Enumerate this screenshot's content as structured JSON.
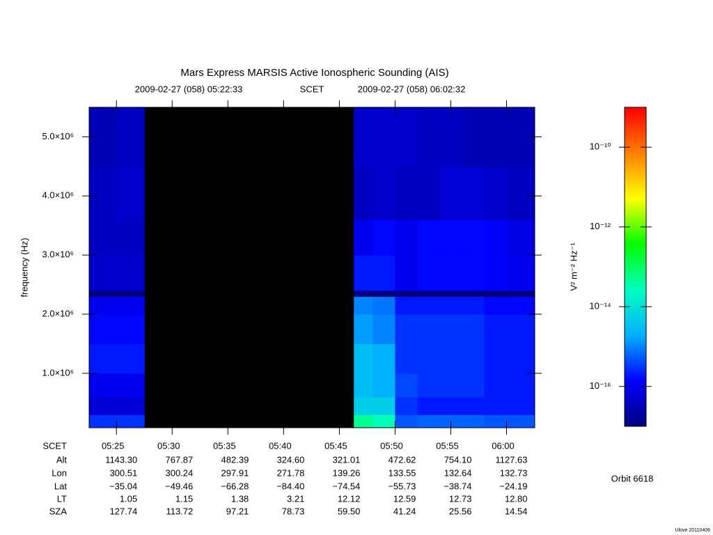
{
  "chart_data": {
    "type": "spectrogram",
    "title": "Mars Express MARSIS Active Ionospheric Sounding (AIS)",
    "start_time": "2009-02-27 (058) 05:22:33",
    "time_label": "SCET",
    "end_time": "2009-02-27 (058) 06:02:32",
    "ylabel": "frequency (Hz)",
    "xlim": [
      322.55,
      362.53
    ],
    "xticks": [
      {
        "value": 325,
        "label": "05:25"
      },
      {
        "value": 330,
        "label": "05:30"
      },
      {
        "value": 335,
        "label": "05:35"
      },
      {
        "value": 340,
        "label": "05:40"
      },
      {
        "value": 345,
        "label": "05:45"
      },
      {
        "value": 350,
        "label": "05:50"
      },
      {
        "value": 355,
        "label": "05:55"
      },
      {
        "value": 360,
        "label": "06:00"
      }
    ],
    "ylim": [
      80000,
      5500000
    ],
    "yticks": [
      {
        "value": 1000000,
        "label": "1.0×10⁶"
      },
      {
        "value": 2000000,
        "label": "2.0×10⁶"
      },
      {
        "value": 3000000,
        "label": "3.0×10⁶"
      },
      {
        "value": 4000000,
        "label": "4.0×10⁶"
      },
      {
        "value": 5000000,
        "label": "5.0×10⁶"
      }
    ],
    "xbins": [
      322.55,
      325,
      327.5,
      346.3,
      348,
      350,
      352,
      354,
      356,
      358,
      360,
      362.53
    ],
    "ybins": [
      80000,
      300000,
      600000,
      1000000,
      1500000,
      2000000,
      2300000,
      2400000,
      3000000,
      3600000,
      4500000,
      5500000
    ],
    "z": [
      [
        3e-16,
        6e-17,
        1e-16,
        2e-16,
        1.5e-16,
        1e-16,
        1e-17,
        5e-17,
        4e-17,
        4e-17,
        3e-17
      ],
      [
        3e-16,
        6e-17,
        1e-16,
        2e-16,
        1.5e-16,
        1e-16,
        1e-17,
        5e-17,
        4e-17,
        5e-17,
        4e-17
      ],
      [
        null,
        null,
        null,
        null,
        null,
        null,
        null,
        null,
        null,
        null,
        null
      ],
      [
        5e-14,
        5e-15,
        3e-15,
        3e-15,
        1.5e-15,
        1e-15,
        1e-17,
        2e-16,
        1e-16,
        4e-17,
        5e-17
      ],
      [
        3e-14,
        5e-15,
        2e-15,
        2e-15,
        1e-15,
        8e-16,
        1e-17,
        2e-16,
        1.5e-16,
        5e-17,
        5e-17
      ],
      [
        5e-16,
        3e-16,
        4e-16,
        3e-16,
        3e-16,
        2e-16,
        1e-17,
        1e-16,
        1e-16,
        4e-17,
        5e-17
      ],
      [
        6e-16,
        2e-16,
        3e-16,
        3e-16,
        3e-16,
        2e-16,
        1e-17,
        1.5e-16,
        1.5e-16,
        4e-17,
        4e-17
      ],
      [
        6e-16,
        2e-16,
        3e-16,
        3e-16,
        3e-16,
        2e-16,
        1e-17,
        1.5e-16,
        1.5e-16,
        6e-17,
        4e-17
      ],
      [
        6e-16,
        2e-16,
        3e-16,
        3e-16,
        3e-16,
        2e-16,
        1e-17,
        1.5e-16,
        1.5e-16,
        6e-17,
        3e-17
      ],
      [
        5e-16,
        2e-16,
        2e-16,
        2e-16,
        2e-16,
        1.5e-16,
        1e-17,
        1.2e-16,
        1.2e-16,
        5e-17,
        3e-17
      ],
      [
        5e-16,
        2e-16,
        2e-16,
        2e-16,
        2e-16,
        1.5e-16,
        1e-17,
        1e-16,
        8e-17,
        4e-17,
        3e-17
      ]
    ],
    "zlim": [
      1e-17,
      1e-09
    ],
    "zscale": "log",
    "zticks": [
      {
        "value": 1e-10,
        "label": "10⁻¹⁰"
      },
      {
        "value": 1e-12,
        "label": "10⁻¹²"
      },
      {
        "value": 1e-14,
        "label": "10⁻¹⁴"
      },
      {
        "value": 1e-16,
        "label": "10⁻¹⁶"
      }
    ],
    "zlabel": "V² m⁻² Hz⁻¹",
    "colormap": [
      "#00007f",
      "#0000ff",
      "#00b0ff",
      "#00ffc0",
      "#00ff00",
      "#ffff00",
      "#ff8000",
      "#ff0000"
    ],
    "nodata_color": "#000000",
    "x_row_label": "SCET",
    "ephemeris": [
      {
        "label": "Alt",
        "values": [
          "1143.30",
          "767.87",
          "482.39",
          "324.60",
          "321.01",
          "472.62",
          "754.10",
          "1127.63"
        ]
      },
      {
        "label": "Lon",
        "values": [
          "300.51",
          "300.24",
          "297.91",
          "271.78",
          "139.26",
          "133.55",
          "132.64",
          "132.73"
        ]
      },
      {
        "label": "Lat",
        "values": [
          "−35.04",
          "−49.46",
          "−66.28",
          "−84.40",
          "−74.54",
          "−55.73",
          "−38.74",
          "−24.19"
        ]
      },
      {
        "label": "LT",
        "values": [
          "1.05",
          "1.15",
          "1.38",
          "3.21",
          "12.12",
          "12.59",
          "12.73",
          "12.80"
        ]
      },
      {
        "label": "SZA",
        "values": [
          "127.74",
          "113.72",
          "97.21",
          "78.73",
          "59.50",
          "41.24",
          "25.56",
          "14.54"
        ]
      }
    ],
    "orbit": "Orbit 6618",
    "footer": "Ulove 20110406"
  }
}
